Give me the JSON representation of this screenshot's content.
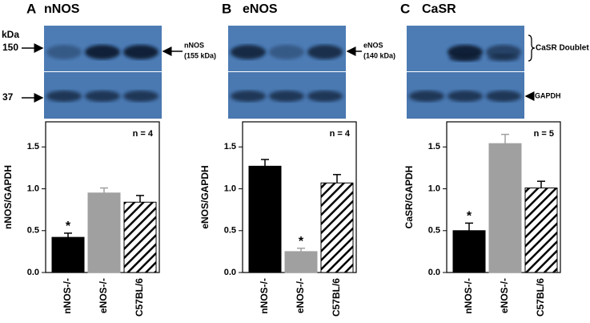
{
  "chart_data": [
    {
      "type": "bar",
      "panel": "A",
      "title": "nNOS",
      "ylabel": "nNOS/GAPDH",
      "categories": [
        "nNOS-/-",
        "eNOS-/-",
        "C57BL/6"
      ],
      "values": [
        0.42,
        0.95,
        0.84
      ],
      "errors": [
        0.05,
        0.06,
        0.08
      ],
      "colors": [
        "#000000",
        "#a0a0a0",
        "#ffffff"
      ],
      "hatch": [
        false,
        false,
        true
      ],
      "markers": [
        "*",
        null,
        null
      ],
      "annotation": "n = 4",
      "ylim": [
        0,
        1.8
      ],
      "yticks": [
        {
          "value": 0,
          "label": "0.0"
        },
        {
          "value": 0.5,
          "label": "0.5"
        },
        {
          "value": 1,
          "label": "1.0"
        },
        {
          "value": 1.5,
          "label": "1.5"
        }
      ],
      "blot": {
        "unit_label": "kDa",
        "size_markers": [
          "150",
          "37"
        ],
        "band_labels": [
          "nNOS",
          "(155 kDa)"
        ]
      }
    },
    {
      "type": "bar",
      "panel": "B",
      "title": "eNOS",
      "ylabel": "eNOS/GAPDH",
      "categories": [
        "nNOS-/-",
        "eNOS-/-",
        "C57BL/6"
      ],
      "values": [
        1.27,
        0.25,
        1.07
      ],
      "errors": [
        0.08,
        0.04,
        0.1
      ],
      "colors": [
        "#000000",
        "#a0a0a0",
        "#ffffff"
      ],
      "hatch": [
        false,
        false,
        true
      ],
      "markers": [
        null,
        "*",
        null
      ],
      "annotation": "n = 4",
      "ylim": [
        0,
        1.8
      ],
      "yticks": [
        {
          "value": 0,
          "label": "0.0"
        },
        {
          "value": 0.5,
          "label": "0.5"
        },
        {
          "value": 1,
          "label": "1.0"
        },
        {
          "value": 1.5,
          "label": "1.5"
        }
      ],
      "blot": {
        "band_labels": [
          "eNOS",
          "(140 kDa)"
        ]
      }
    },
    {
      "type": "bar",
      "panel": "C",
      "title": "CaSR",
      "ylabel": "CaSR/GAPDH",
      "categories": [
        "nNOS-/-",
        "eNOS-/-",
        "C57BL/6"
      ],
      "values": [
        0.5,
        1.54,
        1.01
      ],
      "errors": [
        0.09,
        0.11,
        0.08
      ],
      "colors": [
        "#000000",
        "#a0a0a0",
        "#ffffff"
      ],
      "hatch": [
        false,
        false,
        true
      ],
      "markers": [
        "*",
        null,
        null
      ],
      "annotation": "n = 5",
      "ylim": [
        0,
        1.8
      ],
      "yticks": [
        {
          "value": 0,
          "label": "0.0"
        },
        {
          "value": 0.5,
          "label": "0.5"
        },
        {
          "value": 1,
          "label": "1.0"
        },
        {
          "value": 1.5,
          "label": "1.5"
        }
      ],
      "blot": {
        "band_labels": [
          "CaSR Doublet"
        ],
        "loading_label": "GAPDH"
      }
    }
  ]
}
